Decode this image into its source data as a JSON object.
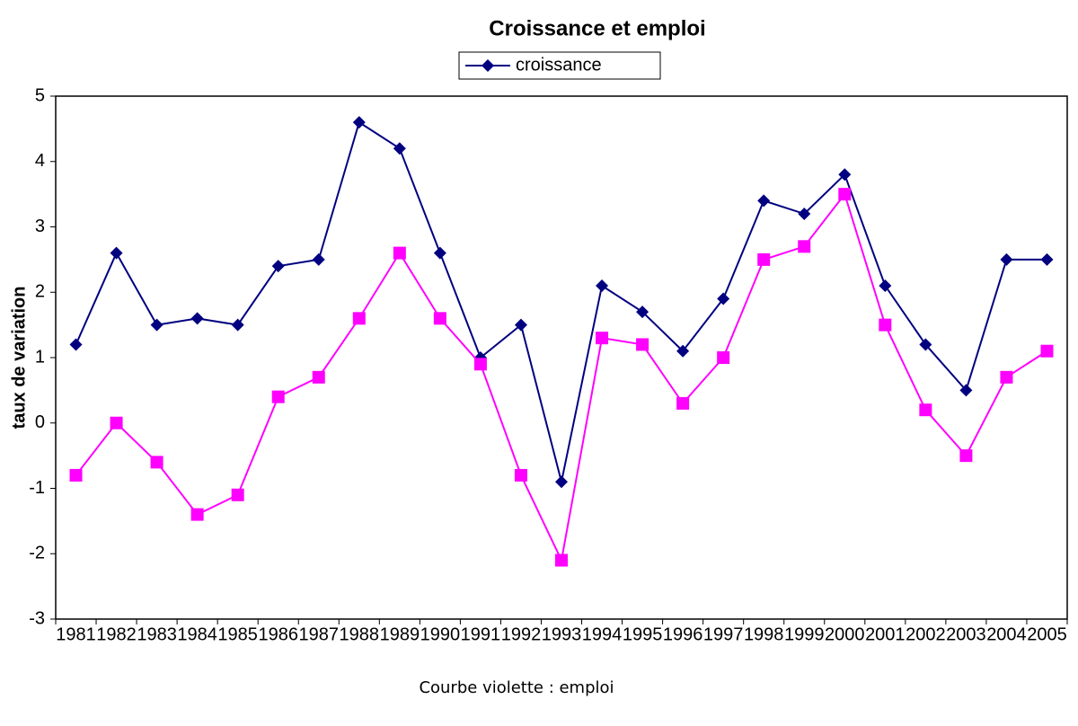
{
  "chart_data": {
    "type": "line",
    "title": "Croissance et emploi",
    "y_label": "taux de variation",
    "note": "Courbe violette : emploi",
    "categories": [
      "1981",
      "1982",
      "1983",
      "1984",
      "1985",
      "1986",
      "1987",
      "1988",
      "1989",
      "1990",
      "1991",
      "1992",
      "1993",
      "1994",
      "1995",
      "1996",
      "1997",
      "1998",
      "1999",
      "2000",
      "2001",
      "2002",
      "2003",
      "2004",
      "2005"
    ],
    "series": [
      {
        "name": "croissance",
        "color": "#000080",
        "marker": "diamond",
        "values": [
          1.2,
          2.6,
          1.5,
          1.6,
          1.5,
          2.4,
          2.5,
          4.6,
          4.2,
          2.6,
          1.0,
          1.5,
          -0.9,
          2.1,
          1.7,
          1.1,
          1.9,
          3.4,
          3.2,
          3.8,
          2.1,
          1.2,
          0.5,
          2.5,
          2.5
        ]
      },
      {
        "color": "#ff00ff",
        "marker": "square",
        "values": [
          -0.8,
          0.0,
          -0.6,
          -1.4,
          -1.1,
          0.4,
          0.7,
          1.6,
          2.6,
          1.6,
          0.9,
          -0.8,
          -2.1,
          1.3,
          1.2,
          0.3,
          1.0,
          2.5,
          2.7,
          3.5,
          1.5,
          0.2,
          -0.5,
          0.7,
          1.1
        ]
      }
    ],
    "ylim": [
      -3,
      5
    ],
    "yticks": [
      -3,
      -2,
      -1,
      0,
      1,
      2,
      3,
      4,
      5
    ],
    "grid": false
  }
}
